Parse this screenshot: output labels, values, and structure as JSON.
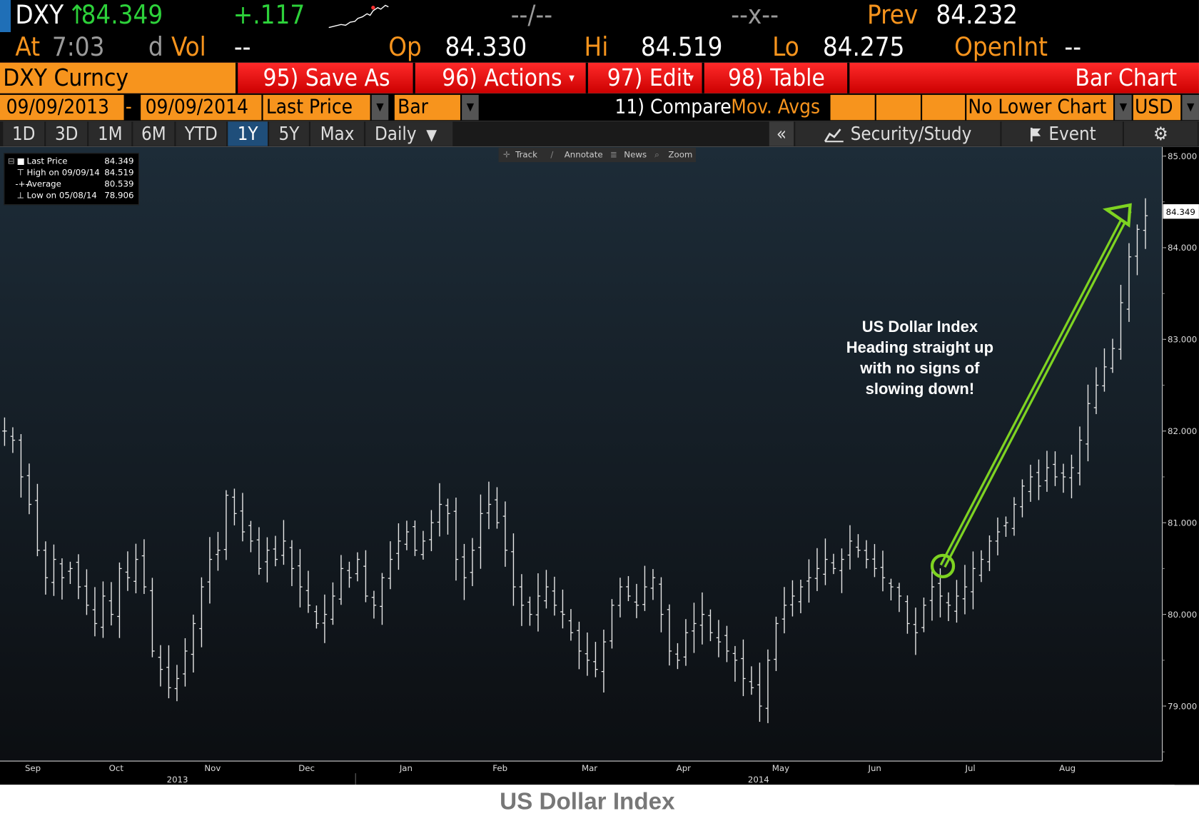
{
  "header": {
    "ticker": "DXY",
    "arrow": "↑",
    "last": "84.349",
    "change": "+.117",
    "vol_placeholder": "--/--",
    "x_placeholder": "--x--",
    "prev_label": "Prev",
    "prev": "84.232",
    "at_label": "At",
    "time": "7:03",
    "dvol_label": "d",
    "vol_label": "Vol",
    "vol": "--",
    "op_label": "Op",
    "op": "84.330",
    "hi_label": "Hi",
    "hi": "84.519",
    "lo_label": "Lo",
    "lo": "84.275",
    "openint_label": "OpenInt",
    "openint": "--"
  },
  "toolbar": {
    "security": "DXY Curncy",
    "save_as": "95) Save As",
    "actions": "96) Actions",
    "edit": "97) Edit",
    "table": "98) Table",
    "title": "Bar Chart"
  },
  "settings": {
    "start_date": "09/09/2013",
    "dash": "-",
    "end_date": "09/09/2014",
    "field": "Last Price",
    "chart_style": "Bar",
    "compare": "11) Compare",
    "mov_avgs": "Mov. Avgs",
    "lower_chart": "No Lower Chart",
    "currency": "USD"
  },
  "ranges": {
    "items": [
      "1D",
      "3D",
      "1M",
      "6M",
      "YTD",
      "1Y",
      "5Y",
      "Max"
    ],
    "active": "1Y",
    "period": "Daily",
    "collapse": "«",
    "security_study": "Security/Study",
    "event": "Event"
  },
  "chart_tools": [
    "Track",
    "Annotate",
    "News",
    "Zoom"
  ],
  "legend": {
    "rows": [
      {
        "label": "Last Price",
        "value": "84.349"
      },
      {
        "label": "High on 09/09/14",
        "value": "84.519"
      },
      {
        "label": "Average",
        "value": "80.539"
      },
      {
        "label": "Low on 05/08/14",
        "value": "78.906"
      }
    ]
  },
  "annotation": "US Dollar Index\nHeading straight up\nwith no signs of\nslowing down!",
  "caption": "US Dollar Index",
  "colors": {
    "header_bg": "#000000",
    "orange": "#f7941d",
    "green": "#2dd13a",
    "red_bar": "#e00000",
    "arrow": "#7ed321"
  },
  "chart_data": {
    "type": "bar",
    "series": [
      {
        "name": "Last Price",
        "style": "OHLC bars",
        "values": [
          82.0,
          81.9,
          81.5,
          81.2,
          80.7,
          80.4,
          80.6,
          80.4,
          80.5,
          80.3,
          80.1,
          79.9,
          80.2,
          80.0,
          80.5,
          80.4,
          80.6,
          80.3,
          79.6,
          79.4,
          79.2,
          79.3,
          79.6,
          79.9,
          80.3,
          80.6,
          80.7,
          81.3,
          81.1,
          80.9,
          80.8,
          80.5,
          80.7,
          80.6,
          80.8,
          80.5,
          80.3,
          80.1,
          79.9,
          80.0,
          80.2,
          80.5,
          80.4,
          80.6,
          80.2,
          80.1,
          80.4,
          80.6,
          80.8,
          80.9,
          80.7,
          80.8,
          81.0,
          81.2,
          81.1,
          80.6,
          80.4,
          80.7,
          81.1,
          81.2,
          81.0,
          80.7,
          80.3,
          80.1,
          80.0,
          80.2,
          80.3,
          80.1,
          80.0,
          79.8,
          79.6,
          79.5,
          79.4,
          79.7,
          80.1,
          80.3,
          80.2,
          80.1,
          80.3,
          80.4,
          80.0,
          79.6,
          79.5,
          79.8,
          79.9,
          80.0,
          79.8,
          79.7,
          79.6,
          79.5,
          79.3,
          79.2,
          79.0,
          79.5,
          79.9,
          80.1,
          80.2,
          80.3,
          80.4,
          80.5,
          80.6,
          80.5,
          80.6,
          80.8,
          80.7,
          80.6,
          80.5,
          80.4,
          80.3,
          80.2,
          79.9,
          79.8,
          80.1,
          80.3,
          80.2,
          80.1,
          80.2,
          80.3,
          80.5,
          80.6,
          80.8,
          80.9,
          81.0,
          81.2,
          81.4,
          81.5,
          81.4,
          81.6,
          81.5,
          81.5,
          81.6,
          81.9,
          82.3,
          82.5,
          82.7,
          82.9,
          83.4,
          83.9,
          84.2,
          84.349
        ]
      }
    ],
    "x_ticks": [
      "Sep",
      "Oct",
      "Nov",
      "Dec",
      "Jan",
      "Feb",
      "Mar",
      "Apr",
      "May",
      "Jun",
      "Jul",
      "Aug"
    ],
    "year_labels": [
      "2013",
      "2014"
    ],
    "y_ticks": [
      "85.000",
      "84.000",
      "83.000",
      "82.000",
      "81.000",
      "80.000",
      "79.000"
    ],
    "ylim": [
      78.4,
      85.1
    ],
    "last_label": "84.349",
    "grid": false,
    "legend_position": "top-left"
  }
}
